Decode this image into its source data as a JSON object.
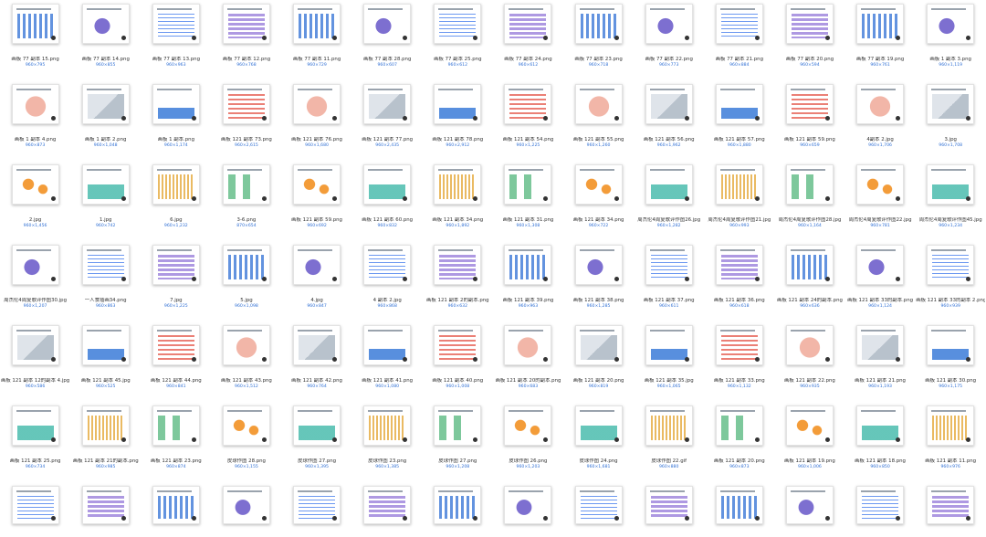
{
  "rows": [
    [
      {
        "name": "画板 77 副本 15.png",
        "dims": "960×795"
      },
      {
        "name": "画板 77 副本 14.png",
        "dims": "960×855"
      },
      {
        "name": "画板 77 副本 13.png",
        "dims": "960×963"
      },
      {
        "name": "画板 77 副本 12.png",
        "dims": "960×768"
      },
      {
        "name": "画板 77 副本 11.png",
        "dims": "960×729"
      },
      {
        "name": "画板 77 副本 28.png",
        "dims": "960×607"
      },
      {
        "name": "画板 77 副本 25.png",
        "dims": "960×612"
      },
      {
        "name": "画板 77 副本 24.png",
        "dims": "960×612"
      },
      {
        "name": "画板 77 副本 23.png",
        "dims": "960×718"
      },
      {
        "name": "画板 77 副本 22.png",
        "dims": "960×773"
      },
      {
        "name": "画板 77 副本 21.png",
        "dims": "960×884"
      },
      {
        "name": "画板 77 副本 20.png",
        "dims": "960×594"
      },
      {
        "name": "画板 77 副本 19.png",
        "dims": "960×761"
      },
      {
        "name": "画板 1 副本 3.png",
        "dims": "960×1,119"
      }
    ],
    [
      {
        "name": "画板 1 副本 4.png",
        "dims": "960×873"
      },
      {
        "name": "画板 1 副本 2.png",
        "dims": "960×1,048"
      },
      {
        "name": "画板 1 副本.png",
        "dims": "960×1,174"
      },
      {
        "name": "画板 121 副本 73.png",
        "dims": "960×2,615"
      },
      {
        "name": "画板 121 副本 76.png",
        "dims": "960×1,680"
      },
      {
        "name": "画板 121 副本 77.png",
        "dims": "960×2,435"
      },
      {
        "name": "画板 121 副本 78.png",
        "dims": "960×2,912"
      },
      {
        "name": "画板 121 副本 54.png",
        "dims": "960×1,225"
      },
      {
        "name": "画板 121 副本 55.png",
        "dims": "960×1,260"
      },
      {
        "name": "画板 121 副本 56.png",
        "dims": "960×1,962"
      },
      {
        "name": "画板 121 副本 57.png",
        "dims": "960×1,880"
      },
      {
        "name": "画板 121 副本 59.png",
        "dims": "960×659"
      },
      {
        "name": "4副本 2.jpg",
        "dims": "960×1,706"
      },
      {
        "name": "3.jpg",
        "dims": "960×1,708"
      }
    ],
    [
      {
        "name": "2.jpg",
        "dims": "960×1,456"
      },
      {
        "name": "1.jpg",
        "dims": "960×742"
      },
      {
        "name": "6.jpg",
        "dims": "960×1,232"
      },
      {
        "name": "3-6.png",
        "dims": "870×654"
      },
      {
        "name": "画板 121 副本 59.png",
        "dims": "960×692"
      },
      {
        "name": "画板 121 副本 60.png",
        "dims": "960×832"
      },
      {
        "name": "画板 121 副本 34.png",
        "dims": "960×1,892"
      },
      {
        "name": "画板 121 副本 31.png",
        "dims": "960×1,308"
      },
      {
        "name": "画板 121 副本 34.png",
        "dims": "960×722"
      },
      {
        "name": "周杰伦4周复歌评作图26.jpg",
        "dims": "960×1,282"
      },
      {
        "name": "周杰伦4周复歌评作图21.jpg",
        "dims": "960×993"
      },
      {
        "name": "周杰伦4周复歌评作图28.jpg",
        "dims": "960×1,164"
      },
      {
        "name": "周杰伦4周复歌评作图22.jpg",
        "dims": "960×781"
      },
      {
        "name": "周杰伦4周复歌评作图45.jpg",
        "dims": "960×1,234"
      }
    ],
    [
      {
        "name": "周杰伦4周复歌评作图30.jpg",
        "dims": "960×1,207"
      },
      {
        "name": "一人食插画34.png",
        "dims": "960×863"
      },
      {
        "name": "7.jpg",
        "dims": "960×1,225"
      },
      {
        "name": "5.jpg",
        "dims": "960×1,098"
      },
      {
        "name": "4.jpg",
        "dims": "960×847"
      },
      {
        "name": "4 副本 2.jpg",
        "dims": "960×868"
      },
      {
        "name": "画板 121 副本 2的副本.png",
        "dims": "960×632"
      },
      {
        "name": "画板 121 副本 39.png",
        "dims": "960×963"
      },
      {
        "name": "画板 121 副本 38.png",
        "dims": "960×1,285"
      },
      {
        "name": "画板 121 副本 37.png",
        "dims": "960×611"
      },
      {
        "name": "画板 121 副本 36.png",
        "dims": "960×618"
      },
      {
        "name": "画板 121 副本 24的副本.png",
        "dims": "960×636"
      },
      {
        "name": "画板 121 副本 33的副本.png",
        "dims": "960×1,124"
      },
      {
        "name": "画板 121 副本 33的副本 2.png",
        "dims": "960×939"
      }
    ],
    [
      {
        "name": "画板 121 副本 12的副本 4.jpg",
        "dims": "960×586"
      },
      {
        "name": "画板 121 副本 45.jpg",
        "dims": "960×525"
      },
      {
        "name": "画板 121 副本 44.png",
        "dims": "960×841"
      },
      {
        "name": "画板 121 副本 43.png",
        "dims": "960×1,512"
      },
      {
        "name": "画板 121 副本 42.png",
        "dims": "960×764"
      },
      {
        "name": "画板 121 副本 41.png",
        "dims": "960×1,080"
      },
      {
        "name": "画板 121 副本 40.png",
        "dims": "960×1,008"
      },
      {
        "name": "画板 121 副本 20的副本.png",
        "dims": "960×683"
      },
      {
        "name": "画板 121 副本 20.png",
        "dims": "960×819"
      },
      {
        "name": "画板 121 副本 35.jpg",
        "dims": "960×1,065"
      },
      {
        "name": "画板 121 副本 33.png",
        "dims": "960×1,132"
      },
      {
        "name": "画板 121 副本 22.png",
        "dims": "960×935"
      },
      {
        "name": "画板 121 副本 21.png",
        "dims": "960×1,193"
      },
      {
        "name": "画板 121 副本 30.png",
        "dims": "960×1,175"
      }
    ],
    [
      {
        "name": "画板 121 副本 25.png",
        "dims": "960×734"
      },
      {
        "name": "画板 121 副本 21的副本.png",
        "dims": "960×985"
      },
      {
        "name": "画板 121 副本 23.png",
        "dims": "960×874"
      },
      {
        "name": "皮球作图 28.png",
        "dims": "960×1,155"
      },
      {
        "name": "皮球作图 27.png",
        "dims": "960×1,395"
      },
      {
        "name": "皮球作图 23.png",
        "dims": "960×1,385"
      },
      {
        "name": "皮球作图 27.png",
        "dims": "960×1,208"
      },
      {
        "name": "皮球作图 26.png",
        "dims": "960×1,203"
      },
      {
        "name": "皮球作图 24.png",
        "dims": "960×1,681"
      },
      {
        "name": "皮球作图 22.gif",
        "dims": "960×880"
      },
      {
        "name": "画板 121 副本 20.png",
        "dims": "960×873"
      },
      {
        "name": "画板 121 副本 19.png",
        "dims": "960×1,006"
      },
      {
        "name": "画板 121 副本 18.png",
        "dims": "960×850"
      },
      {
        "name": "画板 121 副本 11.png",
        "dims": "960×976"
      }
    ],
    [
      {
        "name": "",
        "dims": ""
      },
      {
        "name": "",
        "dims": ""
      },
      {
        "name": "",
        "dims": ""
      },
      {
        "name": "",
        "dims": ""
      },
      {
        "name": "",
        "dims": ""
      },
      {
        "name": "",
        "dims": ""
      },
      {
        "name": "",
        "dims": ""
      },
      {
        "name": "",
        "dims": ""
      },
      {
        "name": "",
        "dims": ""
      },
      {
        "name": "",
        "dims": ""
      },
      {
        "name": "",
        "dims": ""
      },
      {
        "name": "",
        "dims": ""
      },
      {
        "name": "",
        "dims": ""
      },
      {
        "name": "",
        "dims": ""
      }
    ]
  ]
}
